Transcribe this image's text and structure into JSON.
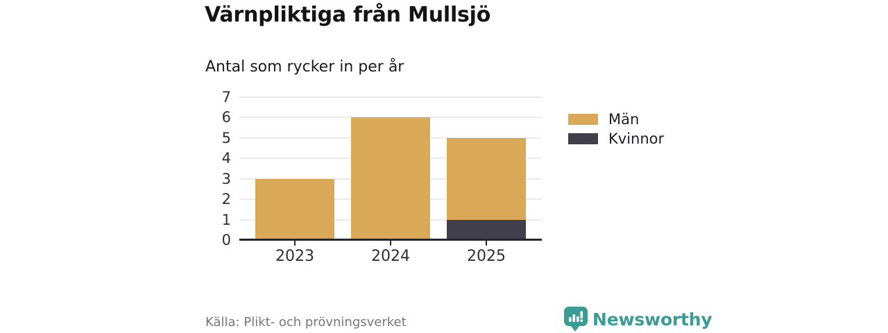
{
  "header": {
    "title": "Värnpliktiga från Mullsjö",
    "subtitle": "Antal som rycker in per år"
  },
  "chart_data": {
    "type": "bar",
    "stacked": true,
    "title": "Värnpliktiga från Mullsjö",
    "subtitle": "Antal som rycker in per år",
    "categories": [
      "2023",
      "2024",
      "2025"
    ],
    "series": [
      {
        "name": "Män",
        "color": "#d9a957",
        "values": [
          3,
          6,
          4
        ]
      },
      {
        "name": "Kvinnor",
        "color": "#423f4d",
        "values": [
          0,
          0,
          1
        ]
      }
    ],
    "stacked_totals": [
      3,
      6,
      5
    ],
    "xlabel": "",
    "ylabel": "",
    "ylim": [
      0,
      7
    ],
    "yticks": [
      0,
      1,
      2,
      3,
      4,
      5,
      6,
      7
    ],
    "grid": true,
    "legend_position": "right"
  },
  "footer": {
    "source": "Källa: Plikt- och prövningsverket",
    "brand": "Newsworthy",
    "brand_color": "#3a9c95"
  },
  "colors": {
    "men": "#d9a957",
    "women": "#423f4d",
    "axis": "#27262e",
    "gridline": "#ebeaed",
    "tick_label": "#2f2e35",
    "source_text": "#76757e",
    "brand_teal": "#3a9c95"
  }
}
